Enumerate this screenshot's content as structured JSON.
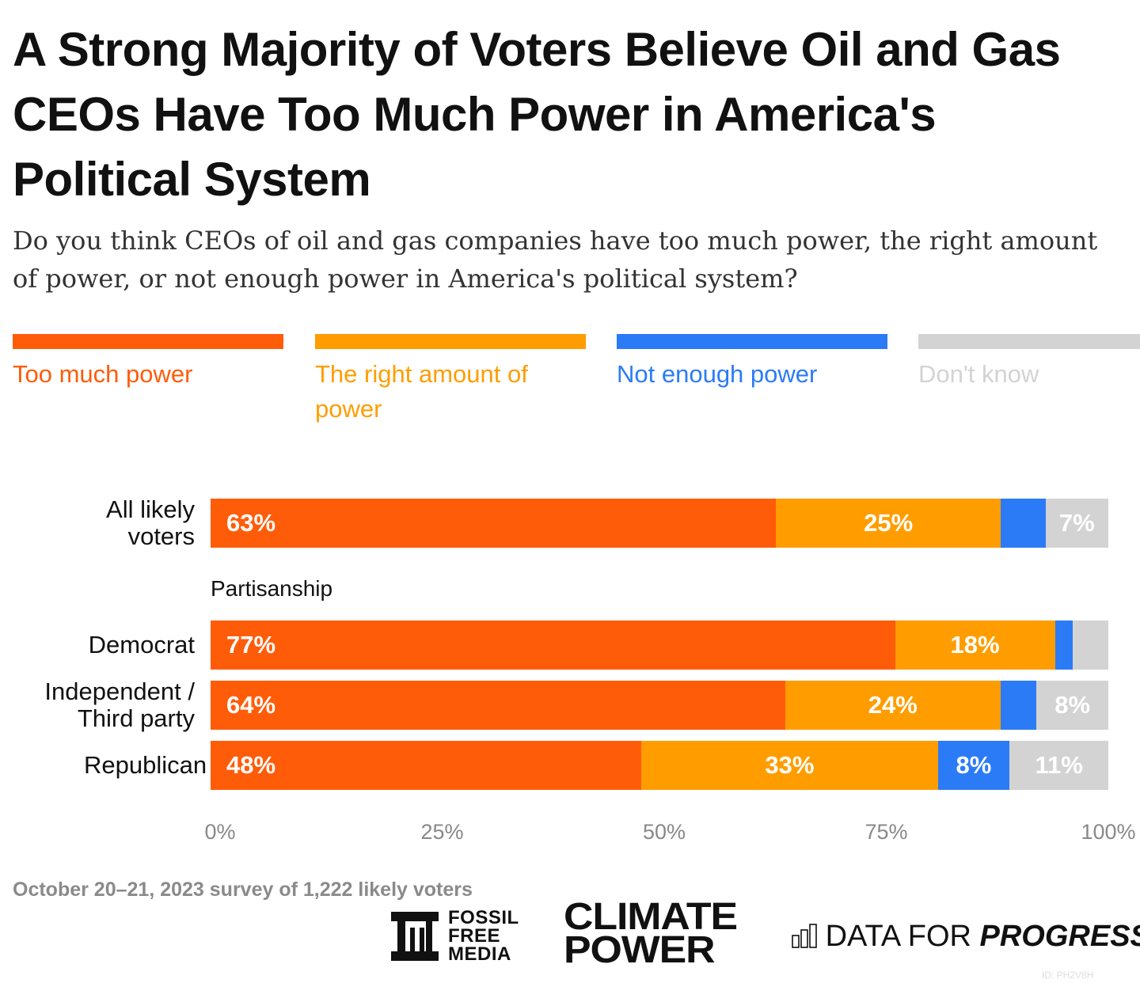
{
  "title": "A Strong Majority of Voters Believe Oil and Gas CEOs Have Too Much Power in America's Political System",
  "subtitle": "Do you think CEOs of oil and gas companies have too much power, the right amount of power, or not enough power in America's political system?",
  "footer": "October 20–21, 2023 survey of 1,222 likely voters",
  "logos": {
    "ffm": [
      "FOSSIL",
      "FREE",
      "MEDIA"
    ],
    "cp": [
      "CLIMATE",
      "POWER"
    ],
    "dfp_a": "DATA FOR",
    "dfp_b": "PROGRESS"
  },
  "id_label": "ID: PH2V8H",
  "chart_data": {
    "type": "bar",
    "stacked": true,
    "orientation": "horizontal",
    "title": "A Strong Majority of Voters Believe Oil and Gas CEOs Have Too Much Power in America's Political System",
    "legend": [
      {
        "name": "Too much power",
        "color": "#ff5c0a"
      },
      {
        "name": "The right amount of power",
        "color": "#ff9d00"
      },
      {
        "name": "Not enough power",
        "color": "#2b7bf7"
      },
      {
        "name": "Don't know",
        "color": "#d3d3d3"
      }
    ],
    "section_label": "Partisanship",
    "categories": [
      "All likely voters",
      "Democrat",
      "Independent / Third party",
      "Republican"
    ],
    "series": [
      {
        "name": "Too much power",
        "values": [
          63,
          77,
          64,
          48
        ]
      },
      {
        "name": "The right amount of power",
        "values": [
          25,
          18,
          24,
          33
        ]
      },
      {
        "name": "Not enough power",
        "values": [
          5,
          2,
          4,
          8
        ]
      },
      {
        "name": "Don't know",
        "values": [
          7,
          4,
          8,
          11
        ]
      }
    ],
    "xlim": [
      0,
      100
    ],
    "xticks": [
      "0%",
      "25%",
      "50%",
      "75%",
      "100%"
    ]
  }
}
